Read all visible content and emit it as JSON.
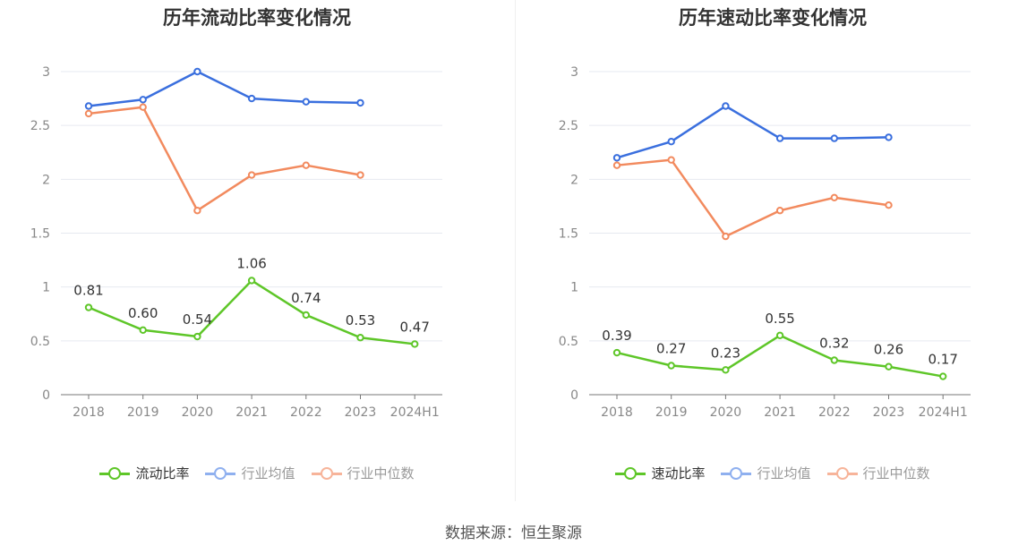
{
  "source_text": "数据来源：恒生聚源",
  "chart_data": [
    {
      "type": "line",
      "title": "历年流动比率变化情况",
      "categories": [
        "2018",
        "2019",
        "2020",
        "2021",
        "2022",
        "2023",
        "2024H1"
      ],
      "ylim": [
        0,
        3
      ],
      "yticks": [
        "0",
        "0.5",
        "1",
        "1.5",
        "2",
        "2.5",
        "3"
      ],
      "grid": true,
      "legend_position": "bottom",
      "series": [
        {
          "name": "流动比率",
          "color": "#5ec628",
          "values": [
            0.81,
            0.6,
            0.54,
            1.06,
            0.74,
            0.53,
            0.47
          ],
          "labels": [
            "0.81",
            "0.60",
            "0.54",
            "1.06",
            "0.74",
            "0.53",
            "0.47"
          ]
        },
        {
          "name": "行业均值",
          "color": "#3a6fde",
          "values": [
            2.68,
            2.74,
            3.0,
            2.75,
            2.72,
            2.71,
            null
          ]
        },
        {
          "name": "行业中位数",
          "color": "#f28a5e",
          "values": [
            2.61,
            2.67,
            1.71,
            2.04,
            2.13,
            2.04,
            null
          ]
        }
      ]
    },
    {
      "type": "line",
      "title": "历年速动比率变化情况",
      "categories": [
        "2018",
        "2019",
        "2020",
        "2021",
        "2022",
        "2023",
        "2024H1"
      ],
      "ylim": [
        0,
        3
      ],
      "yticks": [
        "0",
        "0.5",
        "1",
        "1.5",
        "2",
        "2.5",
        "3"
      ],
      "grid": true,
      "legend_position": "bottom",
      "series": [
        {
          "name": "速动比率",
          "color": "#5ec628",
          "values": [
            0.39,
            0.27,
            0.23,
            0.55,
            0.32,
            0.26,
            0.17
          ],
          "labels": [
            "0.39",
            "0.27",
            "0.23",
            "0.55",
            "0.32",
            "0.26",
            "0.17"
          ]
        },
        {
          "name": "行业均值",
          "color": "#3a6fde",
          "values": [
            2.2,
            2.35,
            2.68,
            2.38,
            2.38,
            2.39,
            null
          ]
        },
        {
          "name": "行业中位数",
          "color": "#f28a5e",
          "values": [
            2.13,
            2.18,
            1.47,
            1.71,
            1.83,
            1.76,
            null
          ]
        }
      ]
    }
  ],
  "legend_colors": {
    "primary": "#5ec628",
    "mean": "#8fb0ef",
    "median": "#f7b49a"
  }
}
